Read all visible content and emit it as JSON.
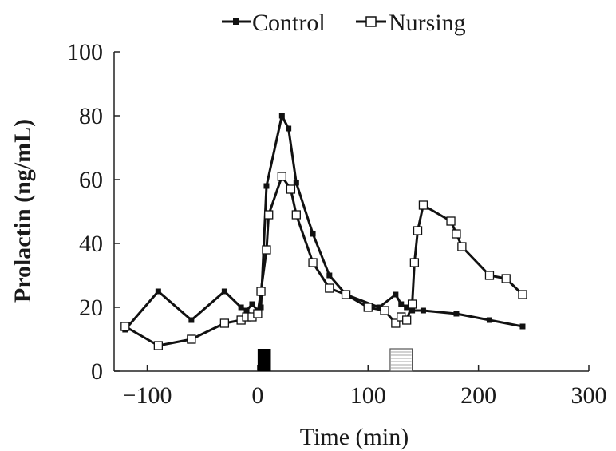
{
  "chart_data": {
    "type": "line",
    "title": "",
    "xlabel": "Time (min)",
    "ylabel": "Prolactin (ng/mL)",
    "xlim": [
      -130,
      300
    ],
    "ylim": [
      0,
      100
    ],
    "xticks": [
      -100,
      0,
      100,
      200,
      300
    ],
    "yticks": [
      0,
      20,
      40,
      60,
      80,
      100
    ],
    "grid": false,
    "legend": "top",
    "series": [
      {
        "name": "Control",
        "marker": "filled-square",
        "color": "#111111",
        "x": [
          -120,
          -90,
          -60,
          -30,
          -15,
          -10,
          -5,
          0,
          3,
          8,
          22,
          28,
          35,
          50,
          65,
          80,
          110,
          125,
          130,
          135,
          140,
          150,
          180,
          210,
          240
        ],
        "y": [
          13,
          25,
          16,
          25,
          20,
          19,
          21,
          19,
          20,
          58,
          80,
          76,
          59,
          43,
          30,
          24,
          20,
          24,
          21,
          20,
          19,
          19,
          18,
          16,
          14
        ]
      },
      {
        "name": "Nursing",
        "marker": "open-square",
        "color": "#111111",
        "x": [
          -120,
          -90,
          -60,
          -30,
          -15,
          -10,
          -5,
          0,
          3,
          8,
          10,
          22,
          30,
          35,
          50,
          65,
          80,
          100,
          115,
          125,
          130,
          135,
          140,
          142,
          145,
          150,
          175,
          180,
          185,
          210,
          225,
          240
        ],
        "y": [
          14,
          8,
          10,
          15,
          16,
          17,
          17,
          18,
          25,
          38,
          49,
          61,
          57,
          49,
          34,
          26,
          24,
          20,
          19,
          15,
          17,
          16,
          21,
          34,
          44,
          52,
          47,
          43,
          39,
          30,
          29,
          24
        ]
      }
    ],
    "treatment_bars": [
      {
        "x_start": 0,
        "x_end": 12,
        "y_top": 7,
        "fill": "#000000"
      },
      {
        "x_start": 120,
        "x_end": 140,
        "y_top": 7,
        "fill": "striped"
      }
    ]
  }
}
